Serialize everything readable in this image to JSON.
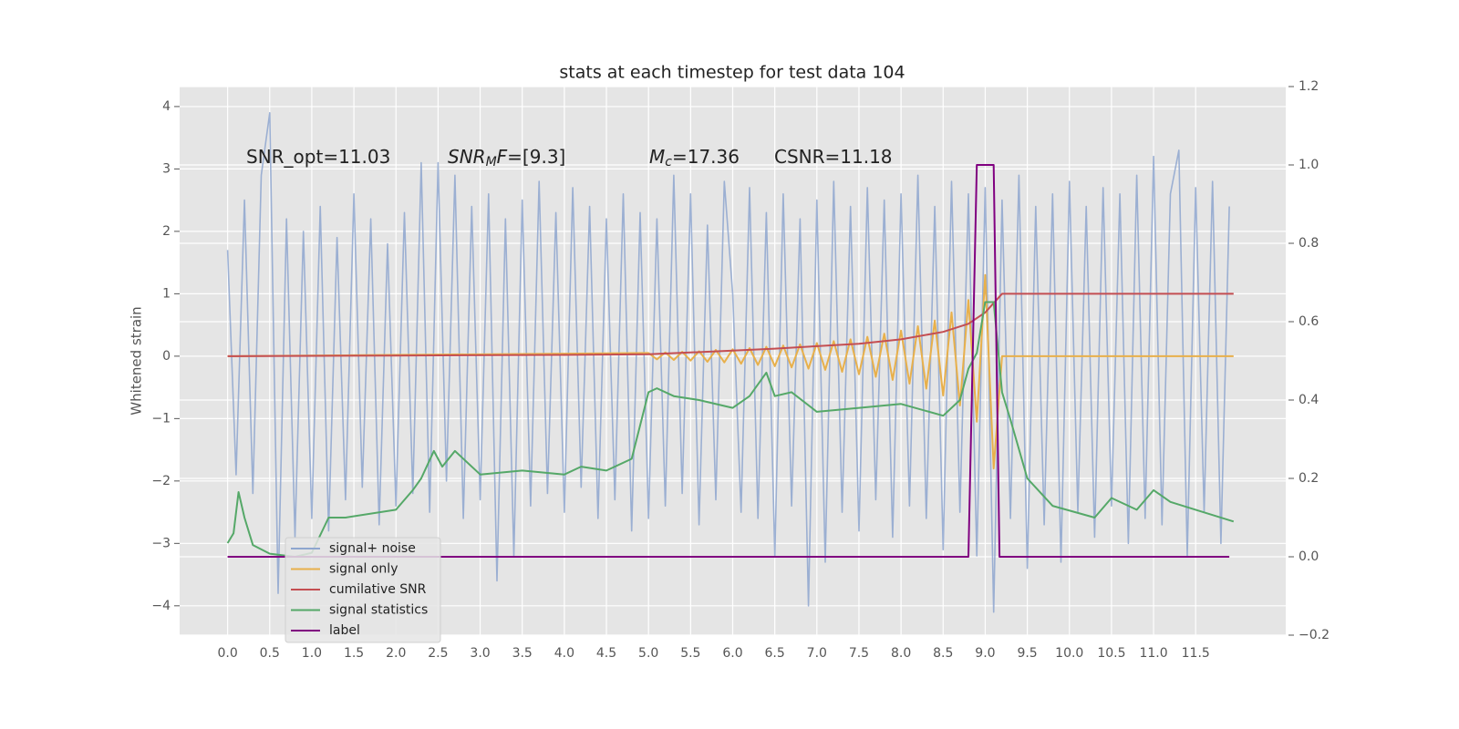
{
  "chart_data": {
    "type": "line",
    "title": "stats at each timestep for test data 104",
    "ylabel": "Whitened strain",
    "xlim": [
      -0.57,
      12.57
    ],
    "ylim": [
      -4.47,
      4.32
    ],
    "y2lim": [
      -0.2,
      1.2
    ],
    "xticks": [
      {
        "value": 0,
        "label": "0.0"
      },
      0.5,
      {
        "value": 1,
        "label": "1.0"
      },
      1.5,
      {
        "value": 2,
        "label": "2.0"
      },
      2.5,
      {
        "value": 3,
        "label": "3.0"
      },
      3.5,
      {
        "value": 4,
        "label": "4.0"
      },
      4.5,
      {
        "value": 5,
        "label": "5.0"
      },
      5.5,
      {
        "value": 6,
        "label": "6.0"
      },
      6.5,
      {
        "value": 7,
        "label": "7.0"
      },
      7.5,
      {
        "value": 8,
        "label": "8.0"
      },
      8.5,
      {
        "value": 9,
        "label": "9.0"
      },
      9.5,
      {
        "value": 10,
        "label": "10.0"
      },
      10.5,
      {
        "value": 11,
        "label": "11.0"
      },
      11.5
    ],
    "yticks": [
      {
        "value": -4,
        "label": "−4"
      },
      {
        "value": -3,
        "label": "−3"
      },
      {
        "value": -2,
        "label": "−2"
      },
      {
        "value": -1,
        "label": "−1"
      },
      0,
      1,
      2,
      3,
      4
    ],
    "y2ticks": [
      {
        "value": -0.2,
        "label": "−0.2"
      },
      {
        "value": 0,
        "label": "0.0"
      },
      0.2,
      0.4,
      0.6,
      0.8,
      {
        "value": 1,
        "label": "1.0"
      },
      1.2
    ],
    "grid": true,
    "legend": "lower left",
    "annotations": [
      {
        "parts": [
          {
            "text": "SNR_opt=11.03"
          }
        ]
      },
      {
        "parts": [
          {
            "text": "SNR",
            "italic": true
          },
          {
            "text": "M",
            "italic": true,
            "sub": true
          },
          {
            "text": "F",
            "italic": true
          },
          {
            "text": "=[9.3]"
          }
        ]
      },
      {
        "parts": [
          {
            "text": "M",
            "italic": true
          },
          {
            "text": "c",
            "italic": true,
            "sub": true
          },
          {
            "text": "=17.36"
          }
        ]
      },
      {
        "parts": [
          {
            "text": "CSNR=11.18"
          }
        ]
      }
    ],
    "series": [
      {
        "name": "signal+ noise",
        "color": "#8ea6cf",
        "x": [
          0,
          0.1,
          0.2,
          0.3,
          0.4,
          0.5,
          0.6,
          0.7,
          0.8,
          0.9,
          1,
          1.1,
          1.2,
          1.3,
          1.4,
          1.5,
          1.6,
          1.7,
          1.8,
          1.9,
          2,
          2.1,
          2.2,
          2.3,
          2.4,
          2.5,
          2.6,
          2.7,
          2.8,
          2.9,
          3,
          3.1,
          3.2,
          3.3,
          3.4,
          3.5,
          3.6,
          3.7,
          3.8,
          3.9,
          4,
          4.1,
          4.2,
          4.3,
          4.4,
          4.5,
          4.6,
          4.7,
          4.8,
          4.9,
          5,
          5.1,
          5.2,
          5.3,
          5.4,
          5.5,
          5.6,
          5.7,
          5.8,
          5.9,
          6,
          6.1,
          6.2,
          6.3,
          6.4,
          6.5,
          6.6,
          6.7,
          6.8,
          6.9,
          7,
          7.1,
          7.2,
          7.3,
          7.4,
          7.5,
          7.6,
          7.7,
          7.8,
          7.9,
          8,
          8.1,
          8.2,
          8.3,
          8.4,
          8.5,
          8.6,
          8.7,
          8.8,
          8.9,
          9,
          9.1,
          9.2,
          9.3,
          9.4,
          9.5,
          9.6,
          9.7,
          9.8,
          9.9,
          10,
          10.1,
          10.2,
          10.3,
          10.4,
          10.5,
          10.6,
          10.7,
          10.8,
          10.9,
          11,
          11.1,
          11.2,
          11.3,
          11.4,
          11.5,
          11.6,
          11.7,
          11.8,
          11.9
        ],
        "values": [
          1.7,
          -1.9,
          2.5,
          -2.2,
          2.9,
          3.9,
          -3.8,
          2.2,
          -2.9,
          2.0,
          -2.6,
          2.4,
          -2.8,
          1.9,
          -2.3,
          2.6,
          -2.1,
          2.2,
          -2.7,
          1.8,
          -2.4,
          2.3,
          -2.2,
          3.1,
          -2.5,
          3.1,
          -2.0,
          2.9,
          -2.6,
          2.4,
          -2.3,
          2.6,
          -3.6,
          2.2,
          -3.2,
          2.5,
          -2.4,
          2.8,
          -2.2,
          2.3,
          -2.5,
          2.7,
          -2.1,
          2.4,
          -2.6,
          2.2,
          -2.3,
          2.6,
          -2.8,
          2.3,
          -2.6,
          2.2,
          -2.4,
          2.9,
          -2.2,
          2.6,
          -2.7,
          2.1,
          -2.3,
          2.8,
          1.0,
          -2.5,
          2.7,
          -2.6,
          2.3,
          -3.2,
          2.6,
          -2.4,
          2.2,
          -4.0,
          2.5,
          -3.3,
          2.8,
          -2.5,
          2.4,
          -2.8,
          2.7,
          -2.3,
          2.5,
          -2.9,
          2.6,
          -2.4,
          2.9,
          -2.6,
          2.4,
          -3.1,
          2.8,
          -2.5,
          2.6,
          -3.2,
          2.7,
          -4.1,
          2.5,
          -2.6,
          2.9,
          -3.4,
          2.4,
          -2.7,
          2.6,
          -3.3,
          2.8,
          -2.5,
          2.4,
          -2.9,
          2.7,
          -2.4,
          2.6,
          -3.0,
          2.9,
          -2.6,
          3.2,
          -2.7,
          2.6,
          3.3,
          -3.2,
          2.7,
          -2.5,
          2.8,
          -3.0,
          2.4
        ]
      },
      {
        "name": "signal only",
        "color": "#e8b04b",
        "x": [
          0,
          5,
          5.1,
          5.2,
          5.3,
          5.4,
          5.5,
          5.6,
          5.7,
          5.8,
          5.9,
          6,
          6.1,
          6.2,
          6.3,
          6.4,
          6.5,
          6.6,
          6.7,
          6.8,
          6.9,
          7,
          7.1,
          7.2,
          7.3,
          7.4,
          7.5,
          7.6,
          7.7,
          7.8,
          7.9,
          8,
          8.1,
          8.2,
          8.3,
          8.4,
          8.5,
          8.6,
          8.7,
          8.8,
          8.9,
          9,
          9.1,
          9.2,
          11.95
        ],
        "values": [
          0,
          0.05,
          -0.05,
          0.06,
          -0.06,
          0.07,
          -0.07,
          0.08,
          -0.09,
          0.1,
          -0.1,
          0.11,
          -0.12,
          0.13,
          -0.14,
          0.15,
          -0.16,
          0.17,
          -0.18,
          0.19,
          -0.2,
          0.21,
          -0.22,
          0.24,
          -0.25,
          0.27,
          -0.29,
          0.31,
          -0.33,
          0.36,
          -0.38,
          0.41,
          -0.44,
          0.48,
          -0.52,
          0.57,
          -0.63,
          0.7,
          -0.79,
          0.9,
          -1.05,
          1.3,
          -1.8,
          0,
          0
        ]
      },
      {
        "name": "cumilative SNR",
        "color": "#c44e52",
        "x": [
          0,
          2,
          4,
          5,
          5.5,
          6,
          6.5,
          7,
          7.5,
          8,
          8.5,
          8.8,
          9,
          9.1,
          9.2,
          11.95
        ],
        "values": [
          0,
          0.01,
          0.02,
          0.03,
          0.06,
          0.09,
          0.12,
          0.16,
          0.2,
          0.27,
          0.39,
          0.52,
          0.7,
          0.85,
          1.0,
          1.0
        ]
      },
      {
        "name": "signal statistics",
        "color": "#55a868",
        "axis": "y2",
        "x": [
          0,
          0.07,
          0.13,
          0.2,
          0.3,
          0.5,
          0.8,
          1.0,
          1.2,
          1.4,
          2.0,
          2.2,
          2.3,
          2.45,
          2.55,
          2.7,
          3.0,
          3.5,
          4.0,
          4.2,
          4.5,
          4.8,
          5.0,
          5.1,
          5.3,
          5.6,
          6.0,
          6.2,
          6.4,
          6.5,
          6.7,
          7.0,
          7.5,
          8.0,
          8.5,
          8.7,
          8.8,
          8.9,
          9.0,
          9.1,
          9.2,
          9.3,
          9.5,
          9.8,
          10.3,
          10.5,
          10.8,
          11.0,
          11.2,
          11.5,
          11.95
        ],
        "values": [
          0.035,
          0.06,
          0.165,
          0.1,
          0.03,
          0.008,
          0.0,
          0.01,
          0.1,
          0.1,
          0.12,
          0.17,
          0.2,
          0.27,
          0.23,
          0.27,
          0.21,
          0.22,
          0.21,
          0.23,
          0.22,
          0.25,
          0.42,
          0.43,
          0.41,
          0.4,
          0.38,
          0.41,
          0.47,
          0.41,
          0.42,
          0.37,
          0.38,
          0.39,
          0.36,
          0.4,
          0.48,
          0.52,
          0.65,
          0.65,
          0.42,
          0.35,
          0.2,
          0.13,
          0.1,
          0.15,
          0.12,
          0.17,
          0.14,
          0.12,
          0.09
        ]
      },
      {
        "name": "label",
        "color": "#800080",
        "axis": "y2",
        "x": [
          0,
          8.8,
          8.9,
          9.1,
          9.17,
          11.9
        ],
        "values": [
          0,
          0,
          1,
          1,
          0,
          0
        ]
      }
    ]
  }
}
